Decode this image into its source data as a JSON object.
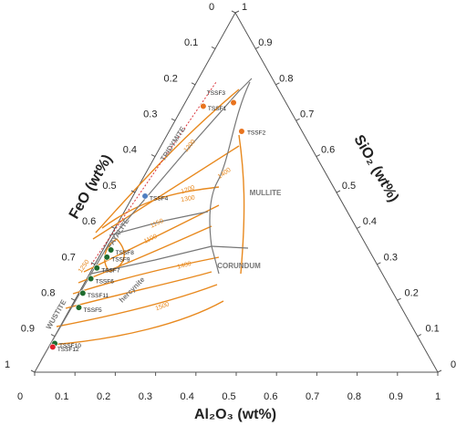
{
  "chart_data": {
    "type": "ternary",
    "axes": {
      "FeO": {
        "label": "FeO (wt%)",
        "ticks": [
          0,
          0.1,
          0.2,
          0.3,
          0.4,
          0.5,
          0.6,
          0.7,
          0.8,
          0.9,
          1
        ]
      },
      "SiO2": {
        "label": "SiO₂ (wt%)",
        "ticks": [
          0,
          0.1,
          0.2,
          0.3,
          0.4,
          0.5,
          0.6,
          0.7,
          0.8,
          0.9,
          1
        ]
      },
      "Al2O3": {
        "label": "Al₂O₃ (wt%)",
        "ticks": [
          0,
          0.1,
          0.2,
          0.3,
          0.4,
          0.5,
          0.6,
          0.7,
          0.8,
          0.9,
          1
        ]
      }
    },
    "phases": [
      "TRIDYMITE",
      "MULLITE",
      "FAYALITE",
      "CORUNDUM",
      "hercynite",
      "WUSTITE"
    ],
    "isotherm_labels": [
      "1200",
      "1400",
      "1300",
      "1200",
      "1150",
      "1100",
      "1250",
      "1400",
      "1500"
    ],
    "samples": {
      "names": [
        "TSSF1",
        "TSSF3",
        "TSSF2",
        "TSSF4",
        "TSSF8",
        "TSSF9",
        "TSSF7",
        "TSSF6",
        "TSSF11",
        "TSSF5",
        "TSSF10",
        "TSSF12"
      ],
      "colors": [
        "#e8731e",
        "#e8731e",
        "#e8731e",
        "#4f7fc0",
        "#1e6b2e",
        "#1e6b2e",
        "#1e6b2e",
        "#1e6b2e",
        "#1e6b2e",
        "#1e6b2e",
        "#1e6b2e",
        "#e0202a"
      ],
      "FeO": [
        0.21,
        0.13,
        0.15,
        0.48,
        0.64,
        0.66,
        0.7,
        0.73,
        0.77,
        0.8,
        0.91,
        0.92
      ],
      "SiO2": [
        0.74,
        0.75,
        0.67,
        0.49,
        0.34,
        0.32,
        0.29,
        0.26,
        0.22,
        0.18,
        0.08,
        0.07
      ],
      "Al2O3": [
        0.05,
        0.12,
        0.18,
        0.03,
        0.02,
        0.02,
        0.01,
        0.01,
        0.01,
        0.02,
        0.01,
        0.01
      ]
    }
  }
}
